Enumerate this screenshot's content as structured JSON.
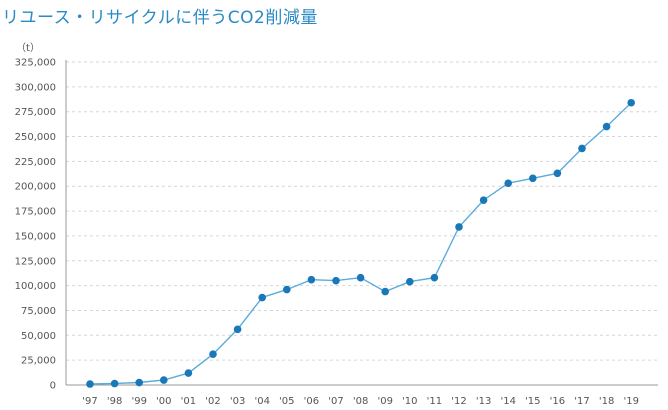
{
  "title": "リユース・リサイクルに伴うCO2削減量",
  "chart_data": {
    "type": "line",
    "title": "リユース・リサイクルに伴うCO2削減量",
    "unit": "（t）",
    "xlabel": "",
    "ylabel": "",
    "categories": [
      "'97",
      "'98",
      "'99",
      "'00",
      "'01",
      "'02",
      "'03",
      "'04",
      "'05",
      "'06",
      "'07",
      "'08",
      "'09",
      "'10",
      "'11",
      "'12",
      "'13",
      "'14",
      "'15",
      "'16",
      "'17",
      "'18",
      "'19"
    ],
    "series": [
      {
        "values": [
          1000,
          1500,
          2500,
          5000,
          12000,
          31000,
          56000,
          88000,
          96000,
          106000,
          105000,
          108000,
          94000,
          104000,
          108000,
          159000,
          186000,
          203000,
          208000,
          213000,
          238000,
          260000,
          284000
        ]
      }
    ],
    "ylim": [
      0,
      325000
    ],
    "yticks": [
      0,
      25000,
      50000,
      75000,
      100000,
      125000,
      150000,
      175000,
      200000,
      225000,
      250000,
      275000,
      300000,
      325000
    ],
    "ytick_labels": [
      "0",
      "25,000",
      "50,000",
      "75,000",
      "100,000",
      "125,000",
      "150,000",
      "175,000",
      "200,000",
      "225,000",
      "250,000",
      "275,000",
      "300,000",
      "325,000"
    ],
    "grid": true,
    "colors": {
      "line": "#5aacdc",
      "marker": "#1a78b8",
      "grid": "#d6d6d6",
      "axis": "#9a9a9a",
      "title": "#2a8ac6"
    }
  }
}
